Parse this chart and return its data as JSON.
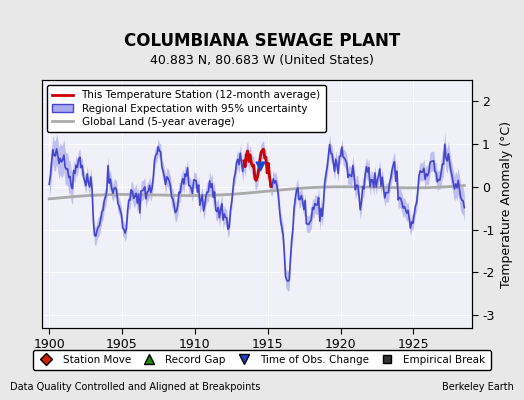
{
  "title": "COLUMBIANA SEWAGE PLANT",
  "subtitle": "40.883 N, 80.683 W (United States)",
  "xlabel_left": "Data Quality Controlled and Aligned at Breakpoints",
  "xlabel_right": "Berkeley Earth",
  "ylabel": "Temperature Anomaly (°C)",
  "xlim": [
    1899.5,
    1929.0
  ],
  "ylim": [
    -3.3,
    2.5
  ],
  "yticks": [
    -3,
    -2,
    -1,
    0,
    1,
    2
  ],
  "xticks": [
    1900,
    1905,
    1910,
    1915,
    1920,
    1925
  ],
  "x_start": 1900.0,
  "x_end": 1928.5,
  "regional_color": "#4444cc",
  "regional_fill_color": "#aaaaee",
  "station_color": "#cc0000",
  "global_color": "#aaaaaa",
  "bg_color": "#e8e8e8",
  "plot_bg_color": "#f0f0f8",
  "legend_items": [
    {
      "label": "This Temperature Station (12-month average)",
      "color": "#cc0000",
      "lw": 2
    },
    {
      "label": "Regional Expectation with 95% uncertainty",
      "color": "#4444cc",
      "lw": 1.5
    },
    {
      "label": "Global Land (5-year average)",
      "color": "#aaaaaa",
      "lw": 2
    }
  ],
  "marker_legend": [
    {
      "marker": "D",
      "color": "#cc2200",
      "label": "Station Move"
    },
    {
      "marker": "^",
      "color": "#228800",
      "label": "Record Gap"
    },
    {
      "marker": "v",
      "color": "#2244cc",
      "label": "Time of Obs. Change"
    },
    {
      "marker": "s",
      "color": "#333333",
      "label": "Empirical Break"
    }
  ],
  "time_of_obs_change_x": 1914.5,
  "station_segment_x_start": 1913.5,
  "station_segment_x_end": 1915.2
}
